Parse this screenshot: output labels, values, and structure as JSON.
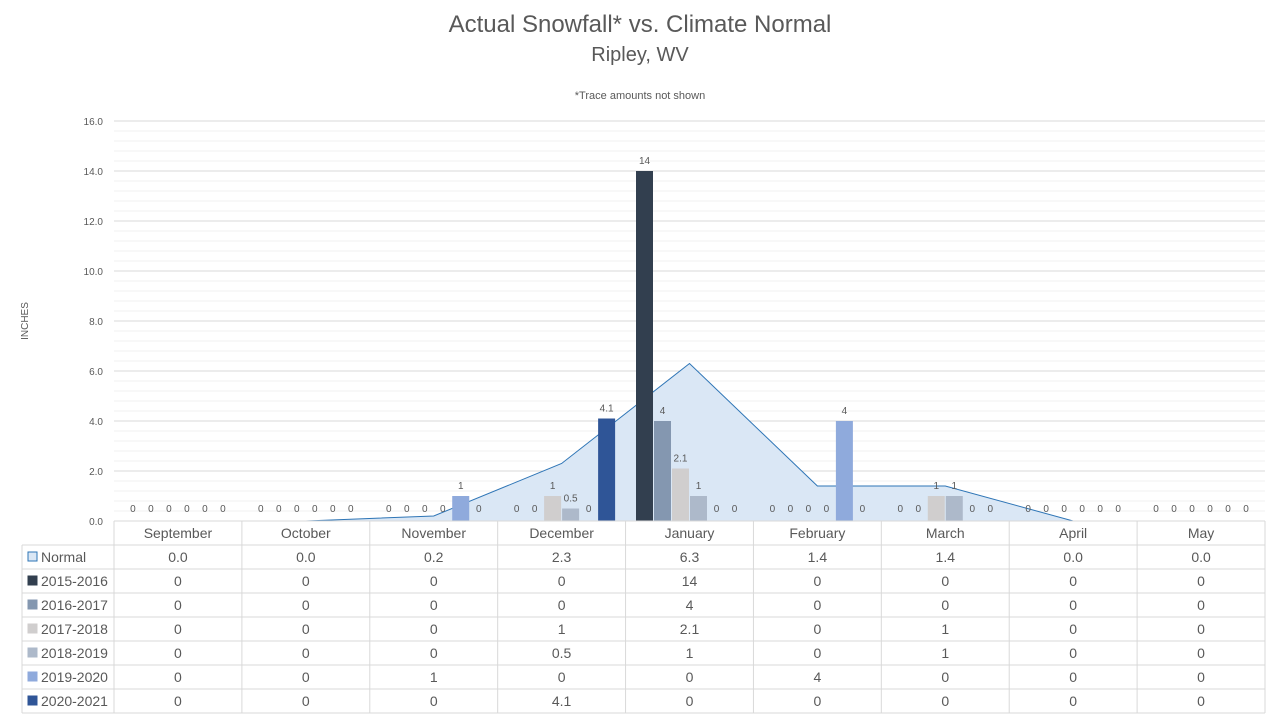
{
  "chart_data": {
    "type": "bar",
    "title": "Actual Snowfall* vs. Climate Normal",
    "subtitle": "Ripley, WV",
    "annotation": "*Trace amounts not shown",
    "ylabel": "INCHES",
    "ylim": [
      0,
      16
    ],
    "yticks": [
      "0.0",
      "2.0",
      "4.0",
      "6.0",
      "8.0",
      "10.0",
      "12.0",
      "14.0",
      "16.0"
    ],
    "grid": true,
    "legend": "data-table",
    "categories": [
      "September",
      "October",
      "November",
      "December",
      "January",
      "February",
      "March",
      "April",
      "May"
    ],
    "normal": {
      "name": "Normal",
      "type": "area",
      "color": "#dae7f5",
      "line_color": "#2e75b6",
      "values": [
        0.0,
        0.0,
        0.2,
        2.3,
        6.3,
        1.4,
        1.4,
        0.0,
        0.0
      ],
      "labels": [
        "0.0",
        "0.0",
        "0.2",
        "2.3",
        "6.3",
        "1.4",
        "1.4",
        "0.0",
        "0.0"
      ]
    },
    "series": [
      {
        "name": "2015-2016",
        "color": "#323f4f",
        "values": [
          0,
          0,
          0,
          0,
          14,
          0,
          0,
          0,
          0
        ],
        "labels": [
          "0",
          "0",
          "0",
          "0",
          "14",
          "0",
          "0",
          "0",
          "0"
        ]
      },
      {
        "name": "2016-2017",
        "color": "#8497b0",
        "values": [
          0,
          0,
          0,
          0,
          4,
          0,
          0,
          0,
          0
        ],
        "labels": [
          "0",
          "0",
          "0",
          "0",
          "4",
          "0",
          "0",
          "0",
          "0"
        ]
      },
      {
        "name": "2017-2018",
        "color": "#d0cece",
        "values": [
          0,
          0,
          0,
          1,
          2.1,
          0,
          1,
          0,
          0
        ],
        "labels": [
          "0",
          "0",
          "0",
          "1",
          "2.1",
          "0",
          "1",
          "0",
          "0"
        ]
      },
      {
        "name": "2018-2019",
        "color": "#adb9ca",
        "values": [
          0,
          0,
          0,
          0.5,
          1,
          0,
          1,
          0,
          0
        ],
        "labels": [
          "0",
          "0",
          "0",
          "0.5",
          "1",
          "0",
          "1",
          "0",
          "0"
        ]
      },
      {
        "name": "2019-2020",
        "color": "#8faadc",
        "values": [
          0,
          0,
          1,
          0,
          0,
          4,
          0,
          0,
          0
        ],
        "labels": [
          "0",
          "0",
          "1",
          "0",
          "0",
          "4",
          "0",
          "0",
          "0"
        ]
      },
      {
        "name": "2020-2021",
        "color": "#2f5597",
        "values": [
          0,
          0,
          0,
          4.1,
          0,
          0,
          0,
          0,
          0
        ],
        "labels": [
          "0",
          "0",
          "0",
          "4.1",
          "0",
          "0",
          "0",
          "0",
          "0"
        ]
      }
    ]
  }
}
